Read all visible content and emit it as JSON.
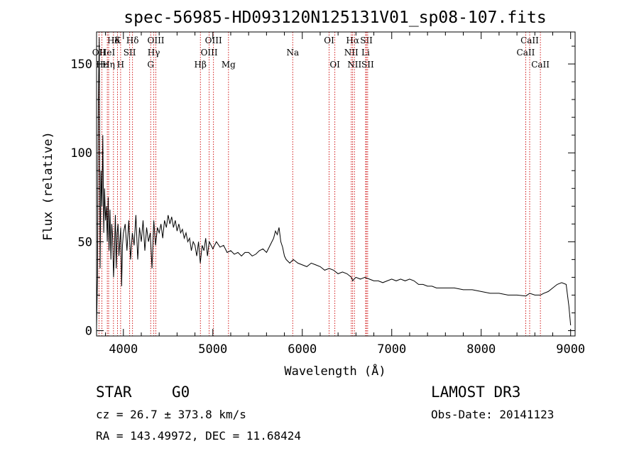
{
  "chart_data": {
    "type": "line",
    "title": "spec-56985-HD093120N125131V01_sp08-107.fits",
    "xlabel": "Wavelength (Å)",
    "ylabel": "Flux (relative)",
    "xlim": [
      3700,
      9050
    ],
    "ylim": [
      -3,
      168
    ],
    "xticks": [
      "4000",
      "5000",
      "6000",
      "7000",
      "8000",
      "9000"
    ],
    "yticks": [
      "0",
      "50",
      "100",
      "150"
    ],
    "series": [
      {
        "name": "flux",
        "x": [
          3700,
          3710,
          3720,
          3730,
          3740,
          3750,
          3760,
          3770,
          3780,
          3790,
          3800,
          3810,
          3820,
          3830,
          3840,
          3850,
          3860,
          3870,
          3880,
          3890,
          3900,
          3910,
          3920,
          3930,
          3940,
          3950,
          3960,
          3970,
          3980,
          3990,
          4000,
          4020,
          4040,
          4060,
          4080,
          4100,
          4120,
          4140,
          4160,
          4180,
          4200,
          4220,
          4240,
          4260,
          4280,
          4300,
          4320,
          4340,
          4360,
          4380,
          4400,
          4420,
          4440,
          4460,
          4480,
          4500,
          4520,
          4540,
          4560,
          4580,
          4600,
          4620,
          4640,
          4660,
          4680,
          4700,
          4720,
          4740,
          4760,
          4780,
          4800,
          4820,
          4840,
          4860,
          4880,
          4900,
          4920,
          4940,
          4960,
          4980,
          5000,
          5040,
          5080,
          5120,
          5160,
          5200,
          5240,
          5280,
          5320,
          5360,
          5400,
          5440,
          5480,
          5520,
          5560,
          5600,
          5640,
          5680,
          5700,
          5720,
          5740,
          5760,
          5780,
          5800,
          5820,
          5840,
          5860,
          5880,
          5900,
          5950,
          6000,
          6050,
          6100,
          6150,
          6200,
          6250,
          6300,
          6350,
          6400,
          6450,
          6500,
          6550,
          6563,
          6580,
          6600,
          6650,
          6700,
          6750,
          6800,
          6850,
          6900,
          6950,
          7000,
          7050,
          7100,
          7150,
          7200,
          7250,
          7300,
          7350,
          7400,
          7450,
          7500,
          7600,
          7700,
          7800,
          7900,
          8000,
          8100,
          8200,
          8300,
          8400,
          8500,
          8542,
          8600,
          8662,
          8700,
          8750,
          8800,
          8850,
          8900,
          8950,
          8980,
          9000
        ],
        "values": [
          2,
          30,
          130,
          165,
          35,
          90,
          70,
          110,
          55,
          80,
          62,
          70,
          50,
          75,
          45,
          68,
          40,
          60,
          52,
          30,
          45,
          65,
          35,
          55,
          60,
          42,
          50,
          58,
          25,
          48,
          55,
          60,
          45,
          62,
          40,
          55,
          48,
          65,
          40,
          58,
          50,
          62,
          45,
          58,
          50,
          55,
          35,
          62,
          48,
          58,
          55,
          60,
          52,
          62,
          58,
          65,
          60,
          64,
          58,
          62,
          56,
          60,
          55,
          57,
          52,
          55,
          50,
          52,
          45,
          50,
          48,
          42,
          50,
          38,
          48,
          45,
          52,
          42,
          50,
          48,
          46,
          50,
          47,
          48,
          44,
          45,
          43,
          44,
          42,
          44,
          44,
          42,
          43,
          45,
          46,
          44,
          48,
          52,
          56,
          54,
          58,
          50,
          47,
          42,
          40,
          39,
          38,
          39,
          40,
          38,
          37,
          36,
          38,
          37,
          36,
          34,
          35,
          34,
          32,
          33,
          32,
          30,
          28,
          29,
          30,
          29,
          30,
          29,
          28,
          28,
          27,
          28,
          29,
          28,
          29,
          28,
          29,
          28,
          26,
          26,
          25,
          25,
          24,
          24,
          24,
          23,
          23,
          22,
          21,
          21,
          20,
          20,
          19.5,
          21,
          20,
          20,
          21,
          22,
          24,
          26,
          27,
          26,
          14,
          3
        ]
      }
    ],
    "lines": [
      {
        "label": "Hδ",
        "x": 4102,
        "row": "top"
      },
      {
        "label": "K",
        "x": 3934,
        "row": "top"
      },
      {
        "label": "Hδ",
        "x": 3889,
        "row": "top"
      },
      {
        "label": "OIII",
        "x": 4363,
        "row": "top"
      },
      {
        "label": "OIII",
        "x": 5007,
        "row": "top"
      },
      {
        "label": "OI",
        "x": 6300,
        "row": "top"
      },
      {
        "label": "Hα",
        "x": 6563,
        "row": "top"
      },
      {
        "label": "SII",
        "x": 6717,
        "row": "top"
      },
      {
        "label": "CaII",
        "x": 8542,
        "row": "top"
      },
      {
        "label": "OII",
        "x": 3727,
        "row": "mid"
      },
      {
        "label": "HeI",
        "x": 3820,
        "row": "mid"
      },
      {
        "label": "SII",
        "x": 4070,
        "row": "mid"
      },
      {
        "label": "Hγ",
        "x": 4340,
        "row": "mid"
      },
      {
        "label": "OIII",
        "x": 4959,
        "row": "mid"
      },
      {
        "label": "Na",
        "x": 5893,
        "row": "mid"
      },
      {
        "label": "NII",
        "x": 6548,
        "row": "mid"
      },
      {
        "label": "Li",
        "x": 6708,
        "row": "mid"
      },
      {
        "label": "CaII",
        "x": 8498,
        "row": "mid"
      },
      {
        "label": "Hε",
        "x": 3760,
        "row": "low"
      },
      {
        "label": "Hη",
        "x": 3835,
        "row": "low"
      },
      {
        "label": "H",
        "x": 3969,
        "row": "low"
      },
      {
        "label": "G",
        "x": 4305,
        "row": "low"
      },
      {
        "label": "Hβ",
        "x": 4861,
        "row": "low"
      },
      {
        "label": "Mg",
        "x": 5175,
        "row": "low"
      },
      {
        "label": "OI",
        "x": 6364,
        "row": "low"
      },
      {
        "label": "NII",
        "x": 6583,
        "row": "low"
      },
      {
        "label": "SII",
        "x": 6731,
        "row": "low"
      },
      {
        "label": "CaII",
        "x": 8662,
        "row": "low"
      }
    ],
    "line_color": "#cc0000"
  },
  "info": {
    "class": "STAR",
    "subclass": "G0",
    "survey": "LAMOST DR3",
    "cz": "cz = 26.7 ± 373.8 km/s",
    "obs_date": "Obs-Date: 20141123",
    "radec": "RA = 143.49972, DEC =  11.68424"
  }
}
